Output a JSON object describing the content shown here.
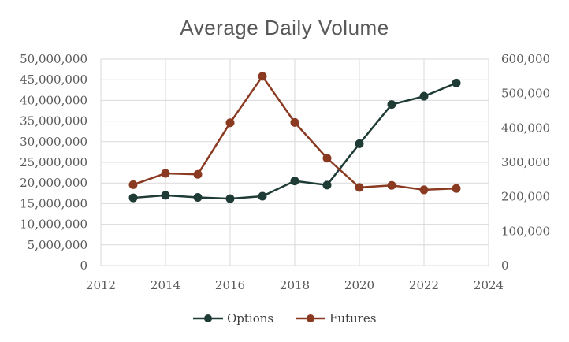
{
  "chart_data": {
    "type": "line",
    "title": "Average Daily Volume",
    "x": [
      2013,
      2014,
      2015,
      2016,
      2017,
      2018,
      2019,
      2020,
      2021,
      2022,
      2023
    ],
    "xlim": [
      2012,
      2024
    ],
    "x_ticks": [
      "2012",
      "2014",
      "2016",
      "2018",
      "2020",
      "2022",
      "2024"
    ],
    "ylim_left": [
      0,
      50000000
    ],
    "y_ticks_left": [
      "0",
      "5,000,000",
      "10,000,000",
      "15,000,000",
      "20,000,000",
      "25,000,000",
      "30,000,000",
      "35,000,000",
      "40,000,000",
      "45,000,000",
      "50,000,000"
    ],
    "ylim_right": [
      0,
      600000
    ],
    "y_ticks_right": [
      "0",
      "100,000",
      "200,000",
      "300,000",
      "400,000",
      "500,000",
      "600,000"
    ],
    "grid": true,
    "legend_position": "bottom",
    "series": [
      {
        "name": "Options",
        "axis": "left",
        "color": "#1f3b35",
        "values": [
          16400000,
          17000000,
          16500000,
          16200000,
          16800000,
          20500000,
          19500000,
          29500000,
          39000000,
          41000000,
          44200000
        ]
      },
      {
        "name": "Futures",
        "axis": "right",
        "color": "#8b3a22",
        "values": [
          235000,
          268000,
          265000,
          415000,
          550000,
          416000,
          312000,
          227000,
          233000,
          220000,
          224000
        ]
      }
    ]
  }
}
